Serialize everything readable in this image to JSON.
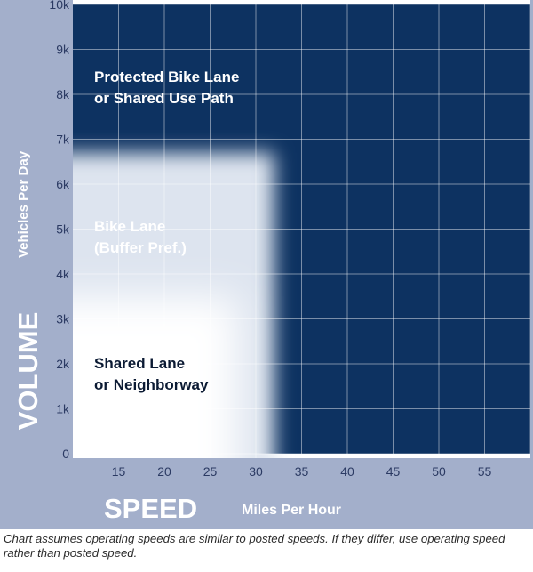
{
  "chart_data": {
    "type": "area",
    "title": "",
    "ylabel_big": "VOLUME",
    "ylabel_small": "Vehicles Per Day",
    "xlabel_big": "SPEED",
    "xlabel_small": "Miles Per Hour",
    "ylim": [
      0,
      10000
    ],
    "xlim": [
      10,
      60
    ],
    "x_ticks": [
      15,
      20,
      25,
      30,
      35,
      40,
      45,
      50,
      55
    ],
    "y_ticks": [
      {
        "value": 0,
        "label": "0"
      },
      {
        "value": 1000,
        "label": "1k"
      },
      {
        "value": 2000,
        "label": "2k"
      },
      {
        "value": 3000,
        "label": "3k"
      },
      {
        "value": 4000,
        "label": "4k"
      },
      {
        "value": 5000,
        "label": "5k"
      },
      {
        "value": 6000,
        "label": "6k"
      },
      {
        "value": 7000,
        "label": "7k"
      },
      {
        "value": 8000,
        "label": "8k"
      },
      {
        "value": 9000,
        "label": "9k"
      },
      {
        "value": 10000,
        "label": "10k"
      }
    ],
    "grid": true,
    "zones": [
      {
        "name": "Protected Bike Lane or Shared Use Path",
        "label_lines": [
          "Protected Bike Lane",
          "or Shared Use Path"
        ],
        "speed_from": 10,
        "speed_to": 60,
        "volume_from": 0,
        "volume_to": 10000,
        "color": "#0d3261"
      },
      {
        "name": "Bike Lane (Buffer Pref.)",
        "label_lines": [
          "Bike Lane",
          "(Buffer Pref.)"
        ],
        "speed_from": 10,
        "speed_to": 32,
        "volume_from": 0,
        "volume_to": 6700,
        "color": "#dde4ef"
      },
      {
        "name": "Shared Lane or Neighborway",
        "label_lines": [
          "Shared Lane",
          "or Neighborway"
        ],
        "speed_from": 10,
        "speed_to": 28,
        "volume_from": 0,
        "volume_to": 3500,
        "color": "#ffffff"
      }
    ],
    "colors": {
      "frame": "#a3afcb",
      "dark_zone": "#0d3261",
      "grid": "#ffffff"
    }
  },
  "note": "Chart assumes operating speeds are similar to posted speeds. If they differ, use operating speed rather than posted speed."
}
